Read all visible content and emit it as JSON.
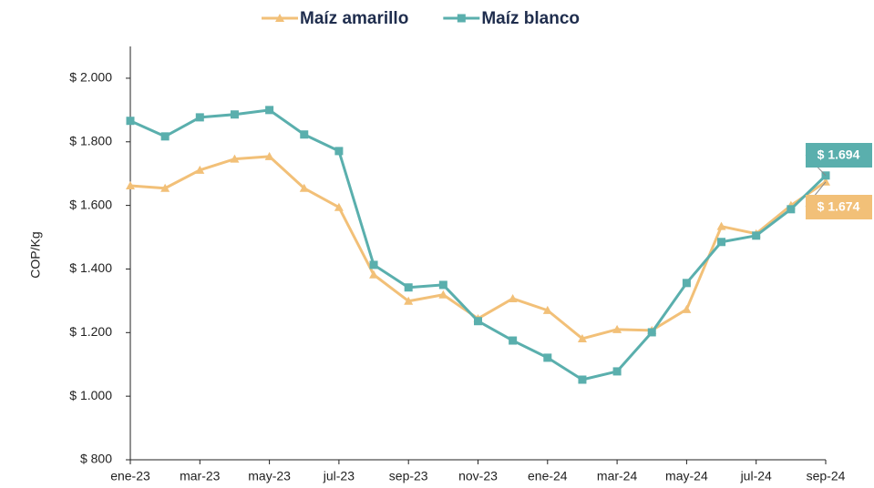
{
  "chart_data": {
    "type": "line",
    "y_label": "COP/Kg",
    "categories": [
      "ene-23",
      null,
      "mar-23",
      null,
      "may-23",
      null,
      "jul-23",
      null,
      "sep-23",
      null,
      "nov-23",
      null,
      "ene-24",
      null,
      "mar-24",
      null,
      "may-24",
      null,
      "jul-24",
      null,
      "sep-24"
    ],
    "series": [
      {
        "name": "Maíz amarillo",
        "color": "#f2c078",
        "marker": "triangle",
        "values": [
          1662,
          1654,
          1711,
          1746,
          1754,
          1654,
          1594,
          1382,
          1299,
          1319,
          1244,
          1307,
          1270,
          1181,
          1210,
          1207,
          1273,
          1534,
          1511,
          1600,
          1674
        ],
        "value_labels": [
          null,
          null,
          null,
          null,
          null,
          null,
          null,
          null,
          null,
          null,
          null,
          null,
          null,
          null,
          null,
          null,
          null,
          null,
          null,
          null,
          "$ 1.674"
        ]
      },
      {
        "name": "Maíz blanco",
        "color": "#5aafad",
        "marker": "square",
        "values": [
          1866,
          1817,
          1877,
          1886,
          1900,
          1823,
          1771,
          1413,
          1342,
          1350,
          1236,
          1175,
          1121,
          1052,
          1078,
          1201,
          1356,
          1485,
          1505,
          1588,
          1694
        ],
        "value_labels": [
          null,
          null,
          null,
          null,
          null,
          null,
          null,
          null,
          null,
          null,
          null,
          null,
          null,
          null,
          null,
          null,
          null,
          null,
          null,
          null,
          "$ 1.694"
        ]
      }
    ],
    "ylim": [
      800,
      2100
    ],
    "yticks": [
      {
        "value": 800,
        "label": "$ 800"
      },
      {
        "value": 1000,
        "label": "$ 1.000"
      },
      {
        "value": 1200,
        "label": "$ 1.200"
      },
      {
        "value": 1400,
        "label": "$ 1.400"
      },
      {
        "value": 1600,
        "label": "$ 1.600"
      },
      {
        "value": 1800,
        "label": "$ 1.800"
      },
      {
        "value": 2000,
        "label": "$ 2.000"
      }
    ],
    "grid": false,
    "legend": "top"
  }
}
